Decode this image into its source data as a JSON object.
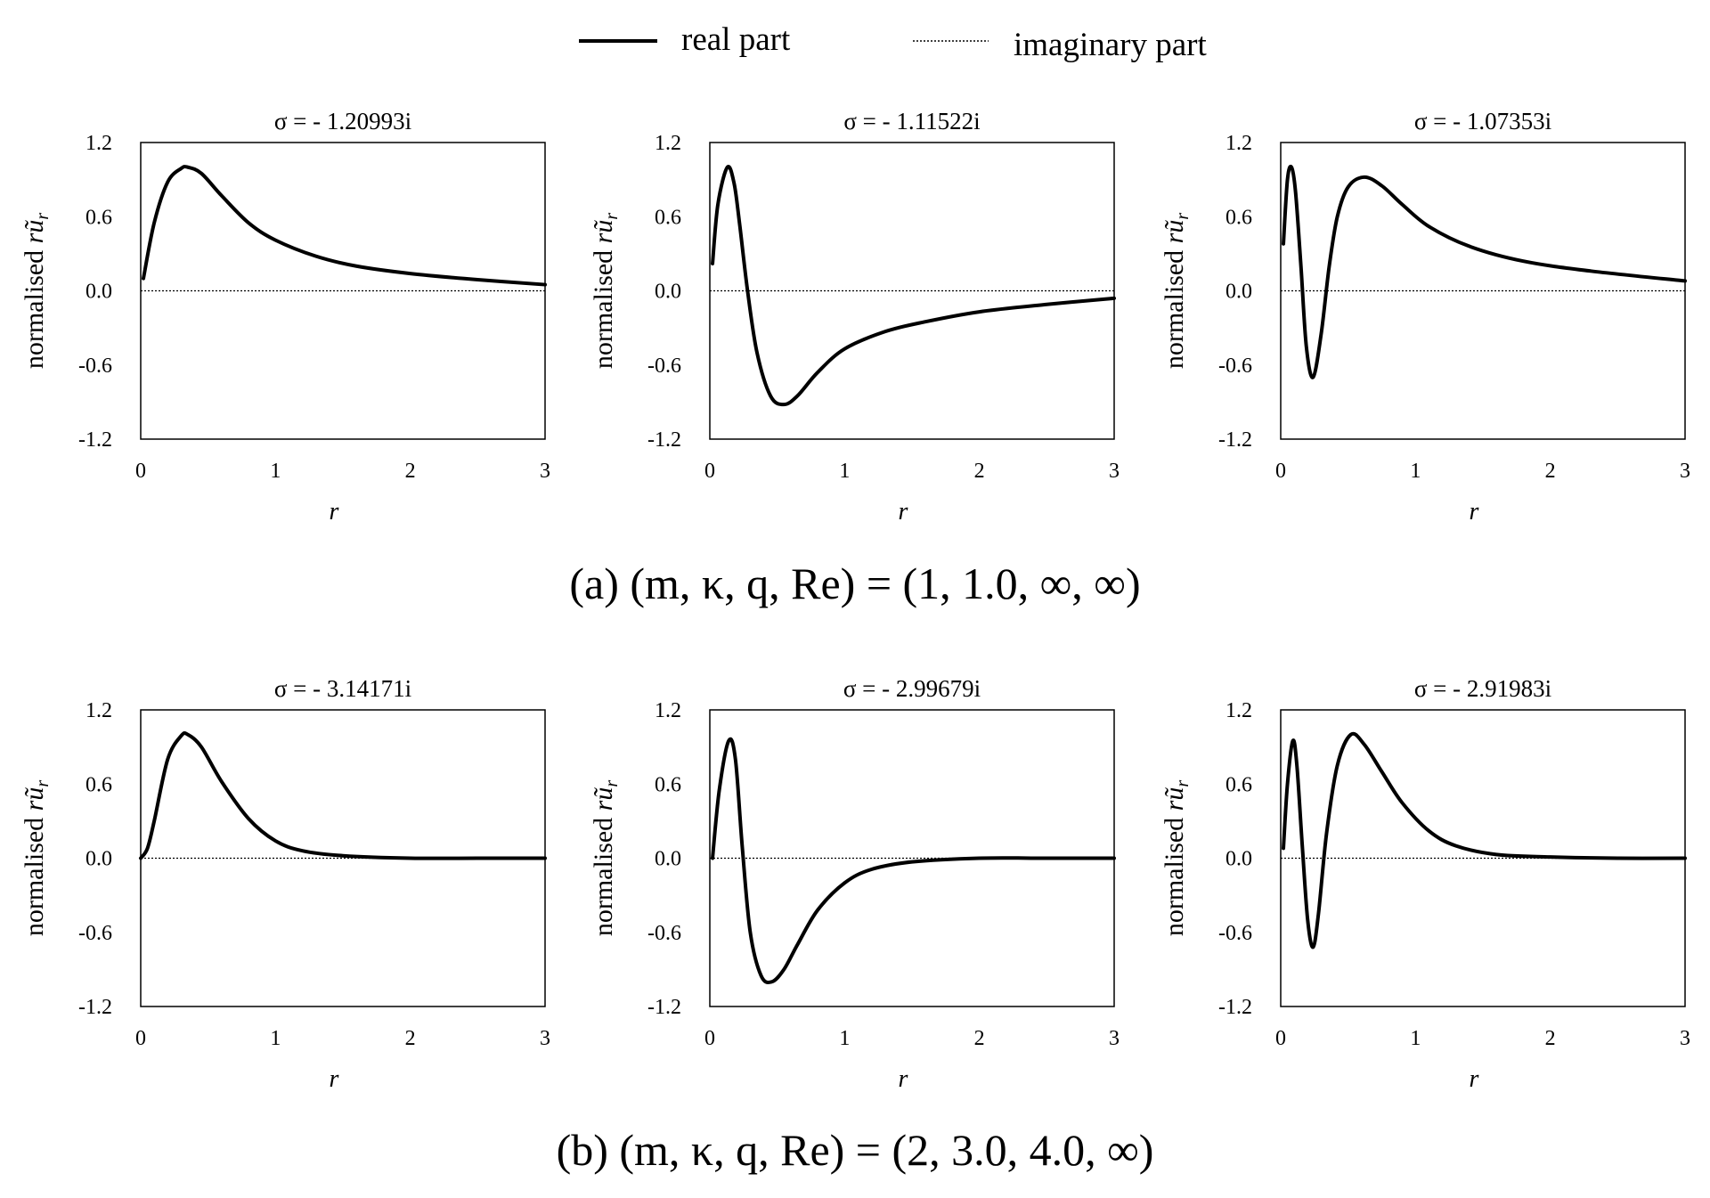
{
  "legend": {
    "real_label": "real part",
    "imag_label": "imaginary part"
  },
  "captions": [
    "(a) (m, κ, q, Re) = (1, 1.0, ∞, ∞)",
    "(b) (m, κ, q, Re) = (2, 3.0, 4.0, ∞)"
  ],
  "chart_data": [
    {
      "type": "line",
      "panel": "a",
      "title": "σ = - 1.20993i",
      "xlabel": "r",
      "ylabel": "normalised rũr",
      "xlim": [
        0,
        3
      ],
      "ylim": [
        -1.2,
        1.2
      ],
      "xticks": [
        "0",
        "1",
        "2",
        "3"
      ],
      "yticks": [
        "1.2",
        "0.6",
        "0.0",
        "-0.6",
        "-1.2"
      ],
      "series": [
        {
          "name": "real part",
          "x": [
            0.02,
            0.1,
            0.2,
            0.3,
            0.35,
            0.45,
            0.6,
            0.8,
            1.0,
            1.3,
            1.6,
            2.0,
            2.5,
            3.0
          ],
          "y": [
            0.1,
            0.55,
            0.88,
            0.99,
            1.0,
            0.95,
            0.77,
            0.55,
            0.41,
            0.28,
            0.2,
            0.14,
            0.09,
            0.05
          ]
        },
        {
          "name": "imaginary part",
          "x": [
            0,
            3
          ],
          "y": [
            0,
            0
          ]
        }
      ]
    },
    {
      "type": "line",
      "panel": "a",
      "title": "σ = - 1.11522i",
      "xlabel": "r",
      "ylabel": "normalised rũr",
      "xlim": [
        0,
        3
      ],
      "ylim": [
        -1.2,
        1.2
      ],
      "xticks": [
        "0",
        "1",
        "2",
        "3"
      ],
      "yticks": [
        "1.2",
        "0.6",
        "0.0",
        "-0.6",
        "-1.2"
      ],
      "series": [
        {
          "name": "real part",
          "x": [
            0.02,
            0.06,
            0.13,
            0.18,
            0.22,
            0.28,
            0.35,
            0.45,
            0.55,
            0.65,
            0.8,
            1.0,
            1.3,
            1.6,
            2.0,
            2.5,
            3.0
          ],
          "y": [
            0.22,
            0.7,
            1.0,
            0.87,
            0.55,
            0.0,
            -0.5,
            -0.85,
            -0.92,
            -0.85,
            -0.66,
            -0.47,
            -0.33,
            -0.25,
            -0.17,
            -0.11,
            -0.06
          ]
        },
        {
          "name": "imaginary part",
          "x": [
            0,
            3
          ],
          "y": [
            0,
            0
          ]
        }
      ]
    },
    {
      "type": "line",
      "panel": "a",
      "title": "σ = - 1.07353i",
      "xlabel": "r",
      "ylabel": "normalised rũr",
      "xlim": [
        0,
        3
      ],
      "ylim": [
        -1.2,
        1.2
      ],
      "xticks": [
        "0",
        "1",
        "2",
        "3"
      ],
      "yticks": [
        "1.2",
        "0.6",
        "0.0",
        "-0.6",
        "-1.2"
      ],
      "series": [
        {
          "name": "real part",
          "x": [
            0.02,
            0.05,
            0.08,
            0.11,
            0.15,
            0.19,
            0.24,
            0.3,
            0.36,
            0.42,
            0.5,
            0.62,
            0.75,
            0.9,
            1.1,
            1.4,
            1.8,
            2.3,
            3.0
          ],
          "y": [
            0.38,
            0.9,
            1.0,
            0.8,
            0.2,
            -0.45,
            -0.7,
            -0.35,
            0.2,
            0.6,
            0.84,
            0.92,
            0.85,
            0.7,
            0.52,
            0.36,
            0.24,
            0.16,
            0.08
          ]
        },
        {
          "name": "imaginary part",
          "x": [
            0,
            3
          ],
          "y": [
            0,
            0
          ]
        }
      ]
    },
    {
      "type": "line",
      "panel": "b",
      "title": "σ = - 3.14171i",
      "xlabel": "r",
      "ylabel": "normalised rũr",
      "xlim": [
        0,
        3
      ],
      "ylim": [
        -1.2,
        1.2
      ],
      "xticks": [
        "0",
        "1",
        "2",
        "3"
      ],
      "yticks": [
        "1.2",
        "0.6",
        "0.0",
        "-0.6",
        "-1.2"
      ],
      "series": [
        {
          "name": "real part",
          "x": [
            0.0,
            0.05,
            0.1,
            0.2,
            0.3,
            0.35,
            0.45,
            0.6,
            0.8,
            1.0,
            1.2,
            1.5,
            2.0,
            2.5,
            3.0
          ],
          "y": [
            0.0,
            0.08,
            0.3,
            0.8,
            0.99,
            1.0,
            0.9,
            0.62,
            0.32,
            0.14,
            0.06,
            0.02,
            0.0,
            0.0,
            0.0
          ]
        },
        {
          "name": "imaginary part",
          "x": [
            0,
            3
          ],
          "y": [
            0,
            0
          ]
        }
      ]
    },
    {
      "type": "line",
      "panel": "b",
      "title": "σ = - 2.99679i",
      "xlabel": "r",
      "ylabel": "normalised rũr",
      "xlim": [
        0,
        3
      ],
      "ylim": [
        -1.2,
        1.2
      ],
      "xticks": [
        "0",
        "1",
        "2",
        "3"
      ],
      "yticks": [
        "1.2",
        "0.6",
        "0.0",
        "-0.6",
        "-1.2"
      ],
      "series": [
        {
          "name": "real part",
          "x": [
            0.02,
            0.07,
            0.14,
            0.19,
            0.24,
            0.3,
            0.38,
            0.46,
            0.55,
            0.65,
            0.8,
            1.0,
            1.2,
            1.5,
            2.0,
            2.5,
            3.0
          ],
          "y": [
            0.0,
            0.55,
            0.95,
            0.8,
            0.1,
            -0.6,
            -0.95,
            -1.0,
            -0.9,
            -0.7,
            -0.42,
            -0.2,
            -0.09,
            -0.03,
            0.0,
            0.0,
            0.0
          ]
        },
        {
          "name": "imaginary part",
          "x": [
            0,
            3
          ],
          "y": [
            0,
            0
          ]
        }
      ]
    },
    {
      "type": "line",
      "panel": "b",
      "title": "σ = - 2.91983i",
      "xlabel": "r",
      "ylabel": "normalised rũr",
      "xlim": [
        0,
        3
      ],
      "ylim": [
        -1.2,
        1.2
      ],
      "xticks": [
        "0",
        "1",
        "2",
        "3"
      ],
      "yticks": [
        "1.2",
        "0.6",
        "0.0",
        "-0.6",
        "-1.2"
      ],
      "series": [
        {
          "name": "real part",
          "x": [
            0.02,
            0.05,
            0.09,
            0.12,
            0.16,
            0.2,
            0.24,
            0.28,
            0.34,
            0.42,
            0.52,
            0.62,
            0.75,
            0.9,
            1.1,
            1.3,
            1.6,
            2.0,
            2.5,
            3.0
          ],
          "y": [
            0.08,
            0.6,
            0.95,
            0.75,
            0.1,
            -0.5,
            -0.72,
            -0.45,
            0.2,
            0.75,
            1.0,
            0.92,
            0.7,
            0.45,
            0.22,
            0.1,
            0.03,
            0.01,
            0.0,
            0.0
          ]
        },
        {
          "name": "imaginary part",
          "x": [
            0,
            3
          ],
          "y": [
            0,
            0
          ]
        }
      ]
    }
  ]
}
